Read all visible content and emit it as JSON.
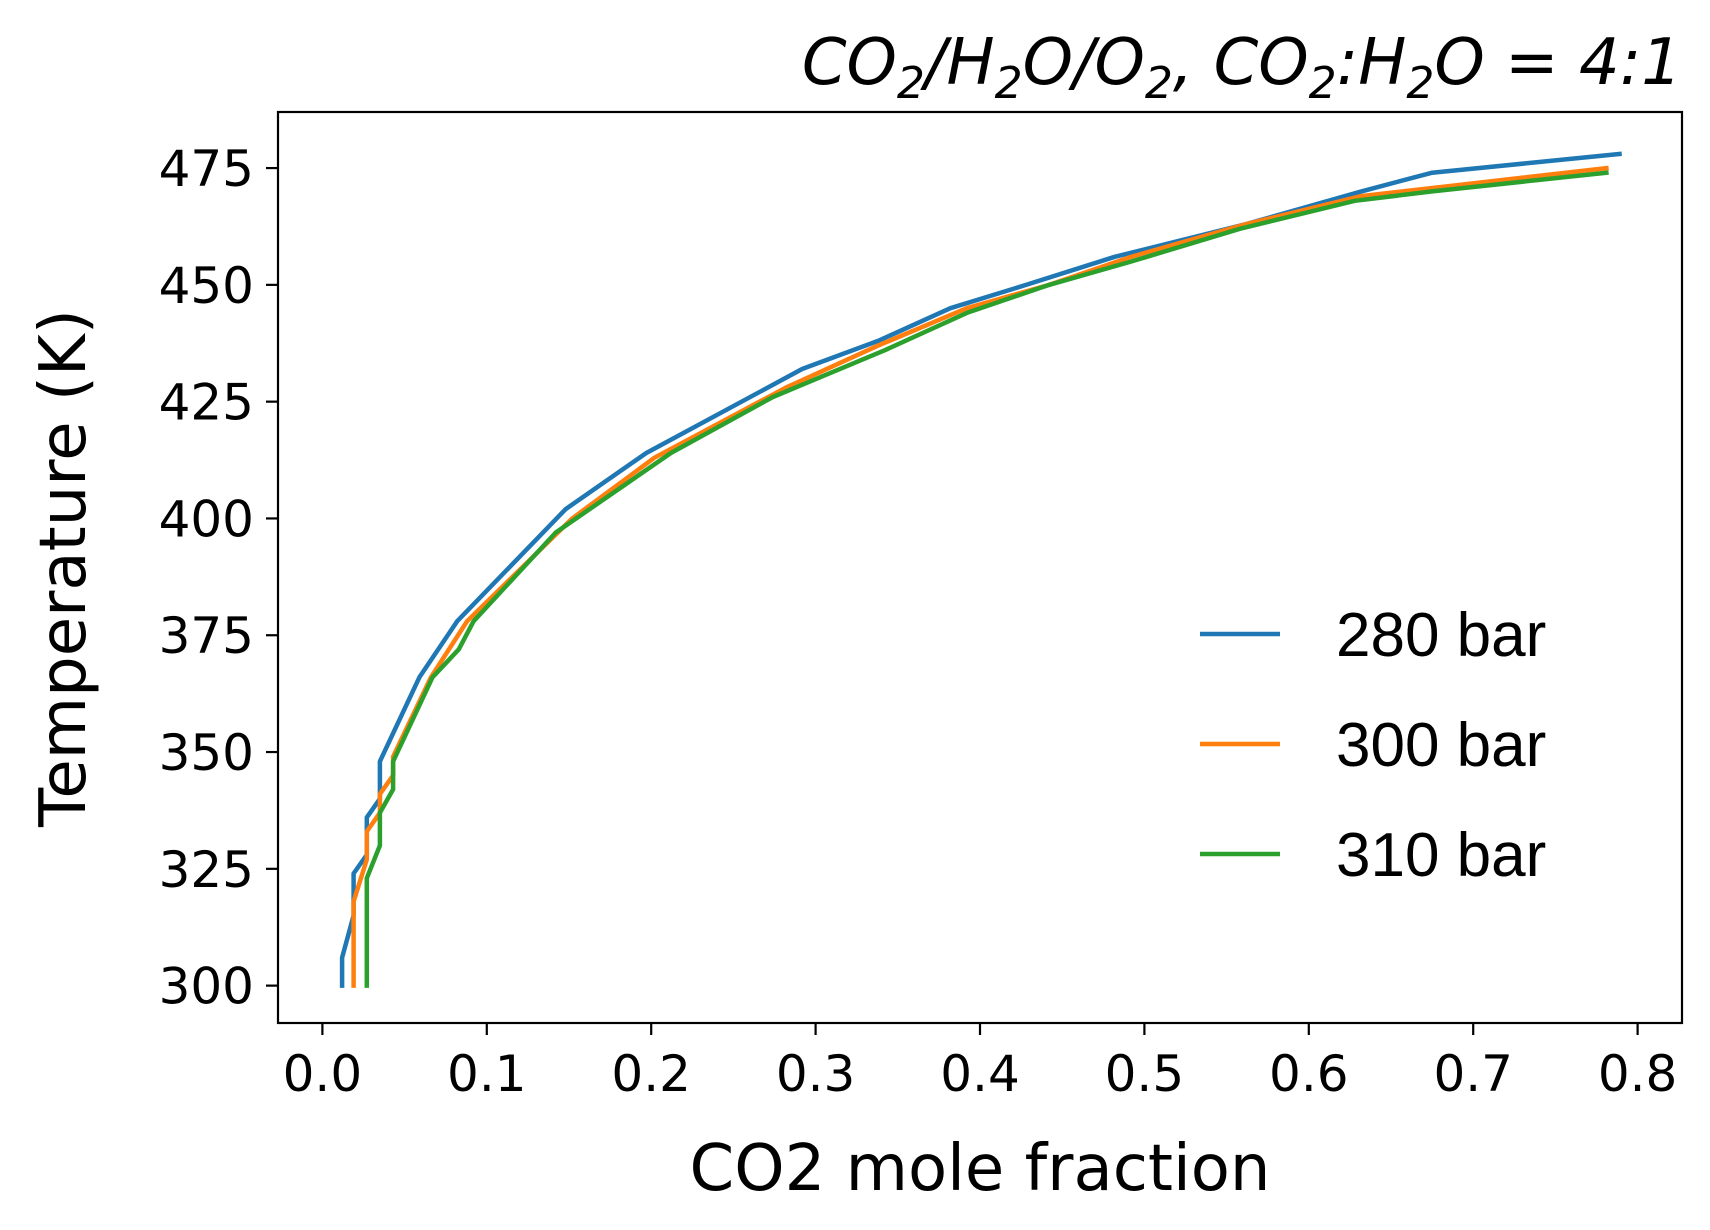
{
  "chart_data": {
    "type": "line",
    "title_parts": [
      {
        "t": "CO",
        "sub": false
      },
      {
        "t": "2",
        "sub": true
      },
      {
        "t": "/H",
        "sub": false
      },
      {
        "t": "2",
        "sub": true
      },
      {
        "t": "O/O",
        "sub": false
      },
      {
        "t": "2",
        "sub": true
      },
      {
        "t": ", CO",
        "sub": false
      },
      {
        "t": "2",
        "sub": true
      },
      {
        "t": ":H",
        "sub": false
      },
      {
        "t": "2",
        "sub": true
      },
      {
        "t": "O = 4:1",
        "sub": false
      }
    ],
    "xlabel": "CO2 mole fraction",
    "ylabel": "Temperature (K)",
    "xlim": [
      -0.027,
      0.827
    ],
    "ylim": [
      292,
      487
    ],
    "xticks": [
      0.0,
      0.1,
      0.2,
      0.3,
      0.4,
      0.5,
      0.6,
      0.7,
      0.8
    ],
    "xtick_labels": [
      "0.0",
      "0.1",
      "0.2",
      "0.3",
      "0.4",
      "0.5",
      "0.6",
      "0.7",
      "0.8"
    ],
    "yticks": [
      300,
      325,
      350,
      375,
      400,
      425,
      450,
      475
    ],
    "ytick_labels": [
      "300",
      "325",
      "350",
      "375",
      "400",
      "425",
      "450",
      "475"
    ],
    "grid": false,
    "legend_position": "center-right",
    "series": [
      {
        "name": "280 bar",
        "color": "#1f77b4",
        "x": [
          0.012,
          0.012,
          0.019,
          0.019,
          0.027,
          0.027,
          0.035,
          0.035,
          0.059,
          0.082,
          0.148,
          0.197,
          0.292,
          0.338,
          0.382,
          0.428,
          0.482,
          0.562,
          0.632,
          0.675,
          0.789
        ],
        "y": [
          300,
          306,
          315,
          324,
          328,
          336,
          340,
          348,
          366,
          378,
          402,
          414,
          432,
          438,
          445,
          450,
          456,
          463,
          470,
          474,
          478
        ]
      },
      {
        "name": "300 bar",
        "color": "#ff7f0e",
        "x": [
          0.019,
          0.019,
          0.027,
          0.027,
          0.035,
          0.035,
          0.043,
          0.043,
          0.066,
          0.088,
          0.152,
          0.202,
          0.282,
          0.338,
          0.392,
          0.442,
          0.492,
          0.562,
          0.632,
          0.682,
          0.781
        ],
        "y": [
          300,
          318,
          327,
          333,
          337,
          341,
          345,
          349,
          366,
          378,
          400,
          413,
          428,
          437,
          445,
          450,
          456,
          463,
          469,
          471,
          475
        ]
      },
      {
        "name": "310 bar",
        "color": "#2ca02c",
        "x": [
          0.027,
          0.027,
          0.035,
          0.035,
          0.043,
          0.043,
          0.067,
          0.083,
          0.092,
          0.142,
          0.212,
          0.274,
          0.342,
          0.392,
          0.442,
          0.492,
          0.558,
          0.628,
          0.675,
          0.781
        ],
        "y": [
          300,
          323,
          330,
          337,
          342,
          348,
          366,
          372,
          378,
          397,
          414,
          426,
          436,
          444,
          450,
          455,
          462,
          468,
          470,
          474
        ]
      }
    ]
  }
}
